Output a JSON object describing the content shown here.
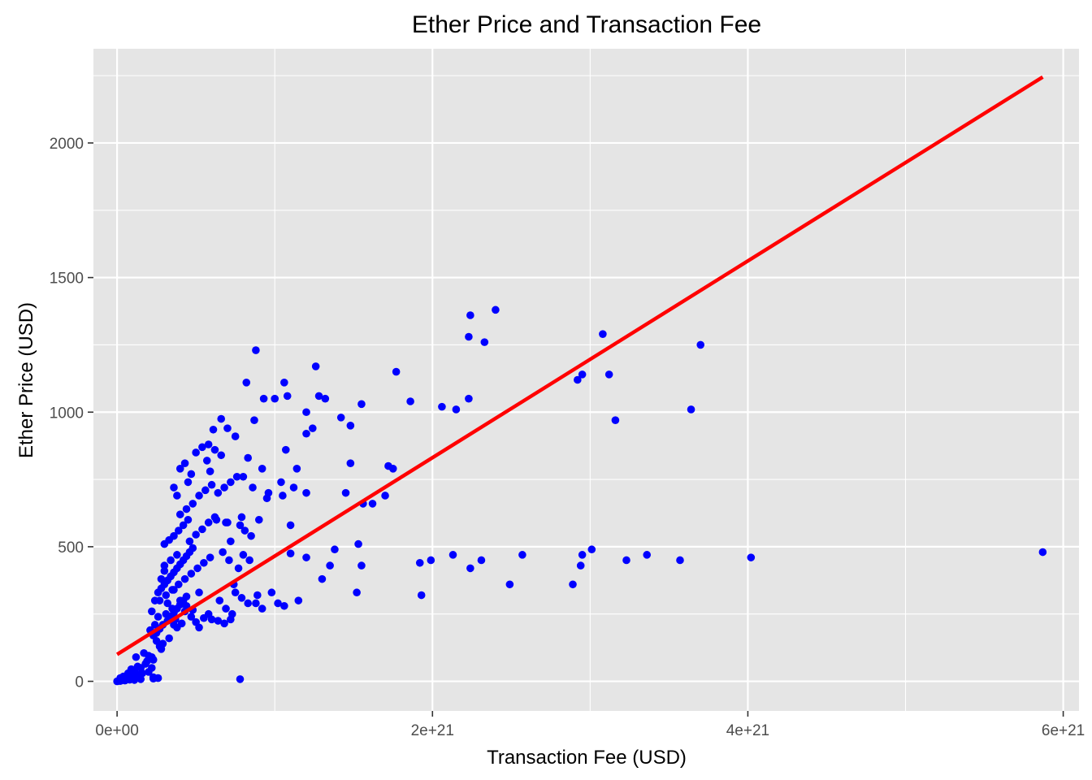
{
  "chart_data": {
    "type": "scatter",
    "title": "Ether Price and Transaction Fee",
    "xlabel": "Transaction Fee (USD)",
    "ylabel": "Ether Price (USD)",
    "xlim": [
      -1.5e+20,
      6.1e+21
    ],
    "ylim": [
      -110,
      2350
    ],
    "x_ticks": [
      {
        "value": 0,
        "label": "0e+00"
      },
      {
        "value": 2e+21,
        "label": "2e+21"
      },
      {
        "value": 4e+21,
        "label": "4e+21"
      },
      {
        "value": 6e+21,
        "label": "6e+21"
      }
    ],
    "x_minor_ticks": [
      1e+21,
      3e+21,
      5e+21
    ],
    "y_ticks": [
      {
        "value": 0,
        "label": "0"
      },
      {
        "value": 500,
        "label": "500"
      },
      {
        "value": 1000,
        "label": "1000"
      },
      {
        "value": 1500,
        "label": "1500"
      },
      {
        "value": 2000,
        "label": "2000"
      }
    ],
    "y_minor_ticks": [
      250,
      750,
      1250,
      1750,
      2250
    ],
    "grid": true,
    "point_color": "#0000ff",
    "line_color": "#ff0000",
    "background_color": "#e5e5e5",
    "trend_line": {
      "x": [
        0,
        5.87e+21
      ],
      "y": [
        100,
        2245
      ]
    },
    "points": [
      [
        0,
        0
      ],
      [
        1e+19,
        2
      ],
      [
        2e+19,
        1
      ],
      [
        3e+19,
        4
      ],
      [
        5e+19,
        3
      ],
      [
        8e+19,
        6
      ],
      [
        1.1e+20,
        5
      ],
      [
        1.5e+20,
        8
      ],
      [
        2e+19,
        12
      ],
      [
        6e+19,
        15
      ],
      [
        1e+20,
        20
      ],
      [
        1.3e+20,
        25
      ],
      [
        1.6e+20,
        30
      ],
      [
        2e+20,
        35
      ],
      [
        9e+19,
        45
      ],
      [
        1.3e+20,
        55
      ],
      [
        1.8e+20,
        65
      ],
      [
        2.3e+20,
        80
      ],
      [
        2e+20,
        95
      ],
      [
        1.2e+20,
        90
      ],
      [
        1.7e+20,
        105
      ],
      [
        2.8e+20,
        120
      ],
      [
        2.9e+20,
        140
      ],
      [
        3.3e+20,
        160
      ],
      [
        2.3e+20,
        10
      ],
      [
        2.6e+20,
        12
      ],
      [
        7.8e+20,
        8
      ],
      [
        2.2e+20,
        90
      ],
      [
        2.5e+20,
        180
      ],
      [
        2.7e+20,
        195
      ],
      [
        2.9e+20,
        210
      ],
      [
        3.2e+20,
        225
      ],
      [
        3.4e+20,
        240
      ],
      [
        3.6e+20,
        255
      ],
      [
        3.8e+20,
        270
      ],
      [
        4e+20,
        285
      ],
      [
        4.2e+20,
        300
      ],
      [
        4.4e+20,
        315
      ],
      [
        2.6e+20,
        330
      ],
      [
        2.8e+20,
        345
      ],
      [
        3e+20,
        360
      ],
      [
        3.2e+20,
        375
      ],
      [
        3.4e+20,
        390
      ],
      [
        3.6e+20,
        405
      ],
      [
        3.8e+20,
        420
      ],
      [
        4e+20,
        435
      ],
      [
        4.2e+20,
        450
      ],
      [
        4.4e+20,
        465
      ],
      [
        4.6e+20,
        480
      ],
      [
        4.8e+20,
        495
      ],
      [
        3e+20,
        510
      ],
      [
        3.3e+20,
        525
      ],
      [
        3.6e+20,
        540
      ],
      [
        3.9e+20,
        560
      ],
      [
        4.2e+20,
        580
      ],
      [
        4.5e+20,
        600
      ],
      [
        3.1e+20,
        250
      ],
      [
        3.5e+20,
        270
      ],
      [
        3.7e+20,
        230
      ],
      [
        4.1e+20,
        215
      ],
      [
        4.3e+20,
        260
      ],
      [
        4.7e+20,
        240
      ],
      [
        5e+20,
        220
      ],
      [
        5.2e+20,
        200
      ],
      [
        5.5e+20,
        235
      ],
      [
        5.8e+20,
        250
      ],
      [
        6e+20,
        230
      ],
      [
        6.4e+20,
        225
      ],
      [
        6.8e+20,
        215
      ],
      [
        7.2e+20,
        230
      ],
      [
        2.7e+20,
        300
      ],
      [
        3.1e+20,
        320
      ],
      [
        3.5e+20,
        340
      ],
      [
        3.9e+20,
        360
      ],
      [
        4.3e+20,
        380
      ],
      [
        4.7e+20,
        400
      ],
      [
        5.1e+20,
        420
      ],
      [
        5.5e+20,
        440
      ],
      [
        5.9e+20,
        460
      ],
      [
        3e+20,
        430
      ],
      [
        3.4e+20,
        450
      ],
      [
        3.8e+20,
        470
      ],
      [
        4.6e+20,
        520
      ],
      [
        5e+20,
        545
      ],
      [
        5.4e+20,
        565
      ],
      [
        5.8e+20,
        590
      ],
      [
        6.2e+20,
        610
      ],
      [
        4e+20,
        620
      ],
      [
        4.4e+20,
        640
      ],
      [
        4.8e+20,
        660
      ],
      [
        5.2e+20,
        690
      ],
      [
        5.6e+20,
        710
      ],
      [
        6e+20,
        730
      ],
      [
        6.4e+20,
        700
      ],
      [
        6.8e+20,
        720
      ],
      [
        7.2e+20,
        740
      ],
      [
        7.6e+20,
        760
      ],
      [
        3.6e+20,
        720
      ],
      [
        4e+20,
        790
      ],
      [
        4.3e+20,
        810
      ],
      [
        4.7e+20,
        770
      ],
      [
        5e+20,
        850
      ],
      [
        5.4e+20,
        870
      ],
      [
        5.8e+20,
        880
      ],
      [
        6.2e+20,
        860
      ],
      [
        6.6e+20,
        840
      ],
      [
        5.7e+20,
        820
      ],
      [
        6.1e+20,
        935
      ],
      [
        6.6e+20,
        975
      ],
      [
        7e+20,
        940
      ],
      [
        7.5e+20,
        910
      ],
      [
        3.8e+20,
        690
      ],
      [
        4.5e+20,
        740
      ],
      [
        5.9e+20,
        780
      ],
      [
        6.3e+20,
        600
      ],
      [
        7e+20,
        590
      ],
      [
        7.8e+20,
        580
      ],
      [
        8.1e+20,
        560
      ],
      [
        8.5e+20,
        540
      ],
      [
        6.7e+20,
        480
      ],
      [
        7.1e+20,
        450
      ],
      [
        7.5e+20,
        330
      ],
      [
        7.9e+20,
        310
      ],
      [
        8.3e+20,
        290
      ],
      [
        3.6e+20,
        340
      ],
      [
        4e+20,
        300
      ],
      [
        4.4e+20,
        280
      ],
      [
        4.8e+20,
        265
      ],
      [
        5.2e+20,
        330
      ],
      [
        6.5e+20,
        300
      ],
      [
        6.9e+20,
        270
      ],
      [
        7.3e+20,
        250
      ],
      [
        8e+20,
        470
      ],
      [
        8.4e+20,
        450
      ],
      [
        8.8e+20,
        290
      ],
      [
        9.2e+20,
        270
      ],
      [
        8.2e+20,
        1110
      ],
      [
        8.8e+20,
        1230
      ],
      [
        9.3e+20,
        1050
      ],
      [
        8.7e+20,
        970
      ],
      [
        8.3e+20,
        830
      ],
      [
        8e+20,
        760
      ],
      [
        8.6e+20,
        720
      ],
      [
        9.2e+20,
        790
      ],
      [
        9.6e+20,
        700
      ],
      [
        1.04e+21,
        740
      ],
      [
        1.12e+21,
        720
      ],
      [
        1e+21,
        1050
      ],
      [
        1.06e+21,
        1110
      ],
      [
        1.08e+21,
        1060
      ],
      [
        1.07e+21,
        860
      ],
      [
        1.14e+21,
        790
      ],
      [
        1.2e+21,
        700
      ],
      [
        1.1e+21,
        580
      ],
      [
        1.1e+21,
        475
      ],
      [
        1.2e+21,
        460
      ],
      [
        1.2e+21,
        920
      ],
      [
        1.2e+21,
        1000
      ],
      [
        1.24e+21,
        940
      ],
      [
        1.26e+21,
        1170
      ],
      [
        1.28e+21,
        1060
      ],
      [
        1.32e+21,
        1050
      ],
      [
        1.3e+21,
        380
      ],
      [
        1.35e+21,
        430
      ],
      [
        1.38e+21,
        490
      ],
      [
        1.42e+21,
        980
      ],
      [
        1.45e+21,
        700
      ],
      [
        1.48e+21,
        950
      ],
      [
        1.48e+21,
        810
      ],
      [
        1.52e+21,
        330
      ],
      [
        1.53e+21,
        510
      ],
      [
        1.55e+21,
        430
      ],
      [
        1.55e+21,
        1030
      ],
      [
        1.56e+21,
        660
      ],
      [
        1.62e+21,
        660
      ],
      [
        1.7e+21,
        690
      ],
      [
        1.72e+21,
        800
      ],
      [
        1.75e+21,
        790
      ],
      [
        1.77e+21,
        1150
      ],
      [
        1.86e+21,
        1040
      ],
      [
        1.92e+21,
        440
      ],
      [
        1.93e+21,
        320
      ],
      [
        1.99e+21,
        450
      ],
      [
        2.06e+21,
        1020
      ],
      [
        2.13e+21,
        470
      ],
      [
        2.15e+21,
        1010
      ],
      [
        2.23e+21,
        1050
      ],
      [
        2.23e+21,
        1280
      ],
      [
        2.24e+21,
        1360
      ],
      [
        2.24e+21,
        420
      ],
      [
        2.31e+21,
        450
      ],
      [
        2.33e+21,
        1260
      ],
      [
        2.4e+21,
        1380
      ],
      [
        2.49e+21,
        360
      ],
      [
        2.57e+21,
        470
      ],
      [
        2.89e+21,
        360
      ],
      [
        2.92e+21,
        1120
      ],
      [
        2.94e+21,
        430
      ],
      [
        2.95e+21,
        470
      ],
      [
        2.95e+21,
        1140
      ],
      [
        3.01e+21,
        490
      ],
      [
        3.08e+21,
        1290
      ],
      [
        3.12e+21,
        1140
      ],
      [
        3.16e+21,
        970
      ],
      [
        3.23e+21,
        450
      ],
      [
        3.36e+21,
        470
      ],
      [
        3.57e+21,
        450
      ],
      [
        3.64e+21,
        1010
      ],
      [
        3.7e+21,
        1250
      ],
      [
        4.02e+21,
        460
      ],
      [
        5.87e+21,
        480
      ],
      [
        9.8e+20,
        330
      ],
      [
        1.02e+21,
        290
      ],
      [
        1.06e+21,
        280
      ],
      [
        1.15e+21,
        300
      ],
      [
        1.05e+21,
        690
      ],
      [
        9.5e+20,
        680
      ],
      [
        7.7e+20,
        420
      ],
      [
        8.9e+20,
        320
      ],
      [
        7.4e+20,
        360
      ],
      [
        7.9e+20,
        610
      ],
      [
        7.2e+20,
        520
      ],
      [
        9e+20,
        600
      ],
      [
        6.9e+20,
        590
      ],
      [
        2.4e+20,
        210
      ],
      [
        2.6e+20,
        240
      ],
      [
        2.2e+20,
        260
      ],
      [
        2.4e+20,
        300
      ],
      [
        2.8e+20,
        380
      ],
      [
        3e+20,
        410
      ],
      [
        3.2e+20,
        290
      ],
      [
        3.4e+20,
        230
      ],
      [
        3.6e+20,
        210
      ],
      [
        3.8e+20,
        200
      ],
      [
        2.1e+20,
        190
      ],
      [
        2.3e+20,
        170
      ],
      [
        2.5e+20,
        150
      ],
      [
        2.7e+20,
        130
      ],
      [
        1.9e+20,
        75
      ],
      [
        1.5e+20,
        50
      ],
      [
        1.1e+20,
        40
      ],
      [
        7e+19,
        30
      ],
      [
        4e+19,
        18
      ],
      [
        2.2e+20,
        50
      ],
      [
        2.3e+20,
        15
      ]
    ]
  }
}
